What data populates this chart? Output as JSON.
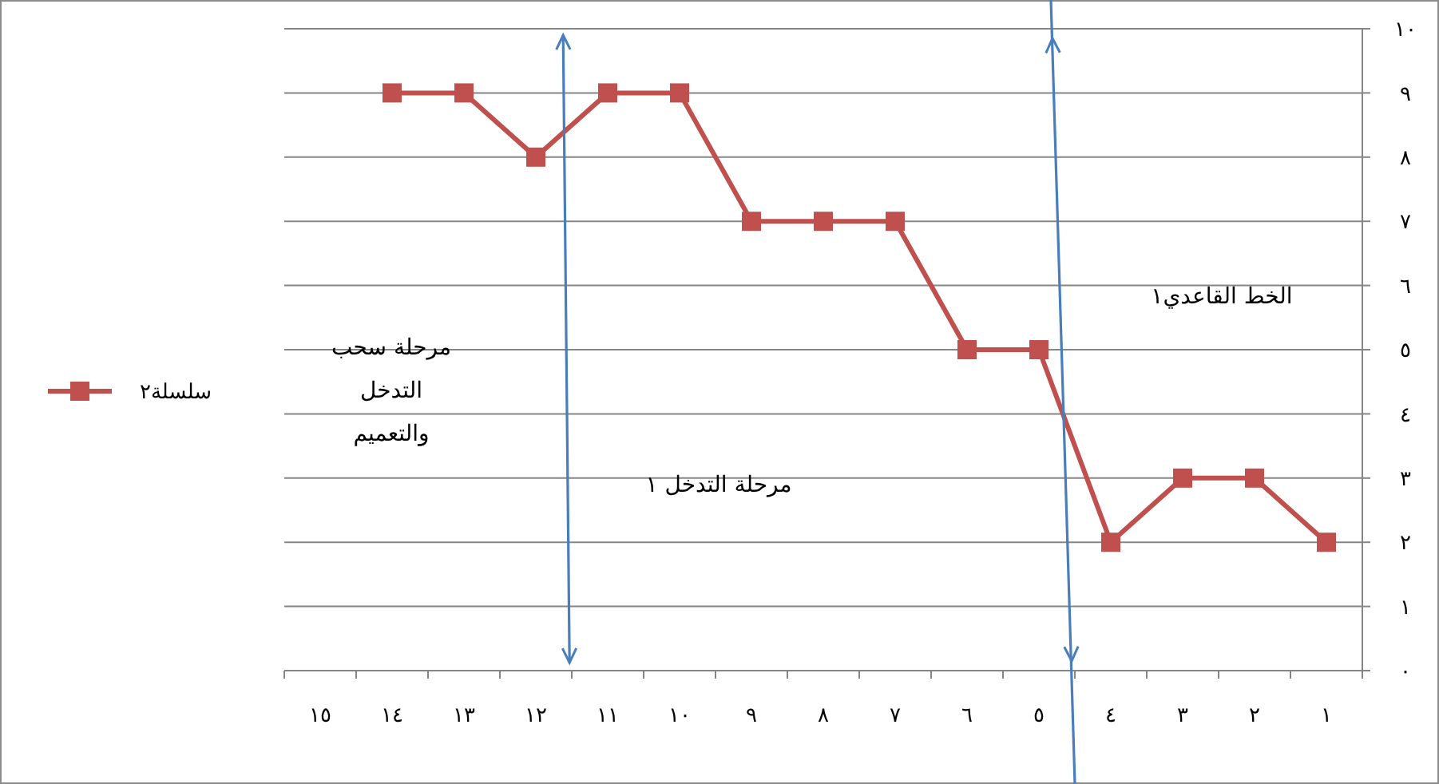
{
  "chart_data": {
    "type": "line",
    "categories": [
      "١٥",
      "١٤",
      "١٣",
      "١٢",
      "١١",
      "١٠",
      "٩",
      "٨",
      "٧",
      "٦",
      "٥",
      "٤",
      "٣",
      "٢",
      "١"
    ],
    "series": [
      {
        "name": "سلسلة٢",
        "color": "#c0504d",
        "values": [
          null,
          9,
          9,
          8,
          9,
          9,
          7,
          7,
          7,
          5,
          5,
          2,
          3,
          3,
          2
        ]
      }
    ],
    "ylim": [
      0,
      10
    ],
    "yticks": [
      {
        "value": 0,
        "label": "٠"
      },
      {
        "value": 1,
        "label": "١"
      },
      {
        "value": 2,
        "label": "٢"
      },
      {
        "value": 3,
        "label": "٣"
      },
      {
        "value": 4,
        "label": "٤"
      },
      {
        "value": 5,
        "label": "٥"
      },
      {
        "value": 6,
        "label": "٦"
      },
      {
        "value": 7,
        "label": "٧"
      },
      {
        "value": 8,
        "label": "٨"
      },
      {
        "value": 9,
        "label": "٩"
      },
      {
        "value": 10,
        "label": "١٠"
      }
    ],
    "grid": "y",
    "legend": "left",
    "marker": "square",
    "line_style": "solid",
    "annotations": [
      "مرحلة سحب التدخل والتعميم",
      "مرحلة التدخل ١",
      "الخط القاعدي١"
    ]
  }
}
